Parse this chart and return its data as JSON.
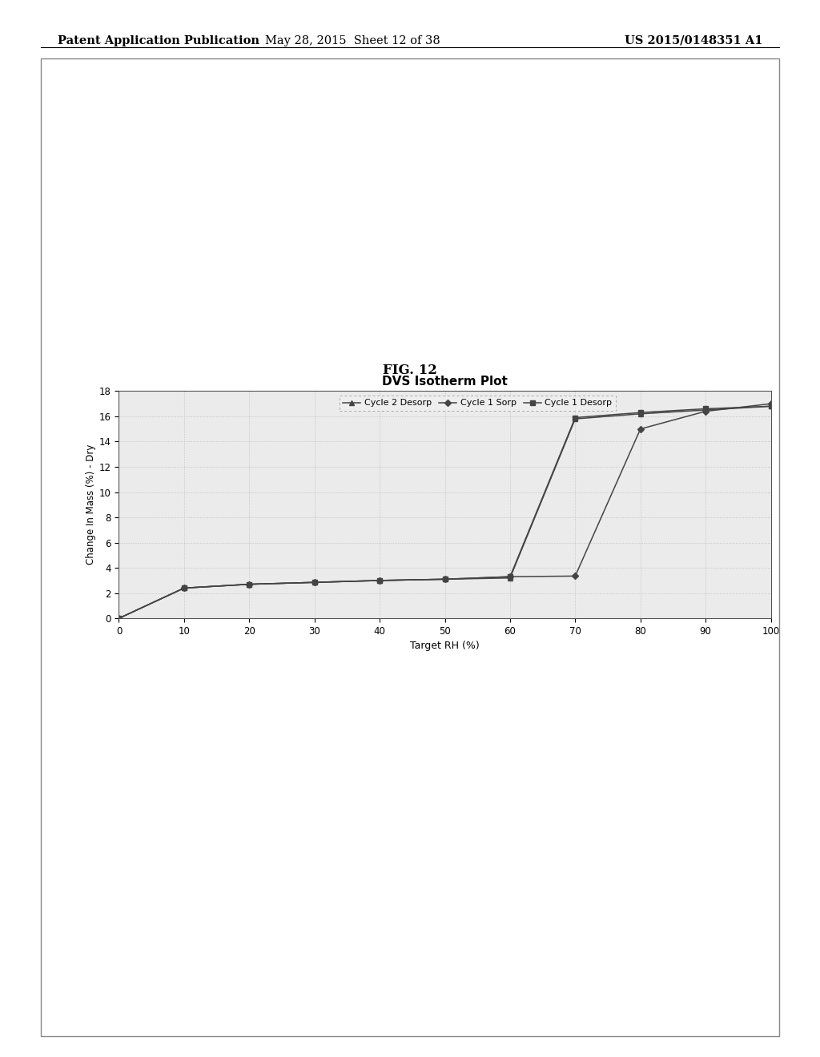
{
  "title": "DVS Isotherm Plot",
  "fig_label": "FIG. 12",
  "xlabel": "Target RH (%)",
  "ylabel": "Change In Mass (%) - Dry",
  "xlim": [
    0,
    100
  ],
  "ylim": [
    0,
    18
  ],
  "xticks": [
    0,
    10,
    20,
    30,
    40,
    50,
    60,
    70,
    80,
    90,
    100
  ],
  "yticks": [
    0,
    2,
    4,
    6,
    8,
    10,
    12,
    14,
    16,
    18
  ],
  "background_color": "#ffffff",
  "chart_bg": "#ebebeb",
  "series": [
    {
      "label": "Cycle 2 Desorp",
      "color": "#444444",
      "marker": "^",
      "markersize": 5,
      "linestyle": "-",
      "x": [
        0,
        10,
        20,
        30,
        40,
        50,
        60,
        70,
        80,
        90,
        100
      ],
      "y": [
        0.0,
        2.4,
        2.7,
        2.85,
        3.0,
        3.1,
        3.2,
        15.8,
        16.2,
        16.5,
        16.8
      ]
    },
    {
      "label": "Cycle 1 Sorp",
      "color": "#444444",
      "marker": "D",
      "markersize": 4,
      "linestyle": "-",
      "x": [
        0,
        10,
        20,
        30,
        40,
        50,
        60,
        70,
        80,
        90,
        100
      ],
      "y": [
        0.0,
        2.4,
        2.7,
        2.85,
        3.0,
        3.1,
        3.3,
        3.35,
        15.0,
        16.4,
        17.0
      ]
    },
    {
      "label": "Cycle 1 Desorp",
      "color": "#444444",
      "marker": "s",
      "markersize": 5,
      "linestyle": "-",
      "x": [
        0,
        10,
        20,
        30,
        40,
        50,
        60,
        70,
        80,
        90,
        100
      ],
      "y": [
        0.0,
        2.4,
        2.7,
        2.85,
        3.0,
        3.1,
        3.3,
        15.9,
        16.3,
        16.6,
        16.8
      ]
    }
  ],
  "header_left": "Patent Application Publication",
  "header_center": "May 28, 2015  Sheet 12 of 38",
  "header_right": "US 2015/0148351 A1",
  "chart_border_color": "#555555",
  "outer_border_color": "#888888"
}
